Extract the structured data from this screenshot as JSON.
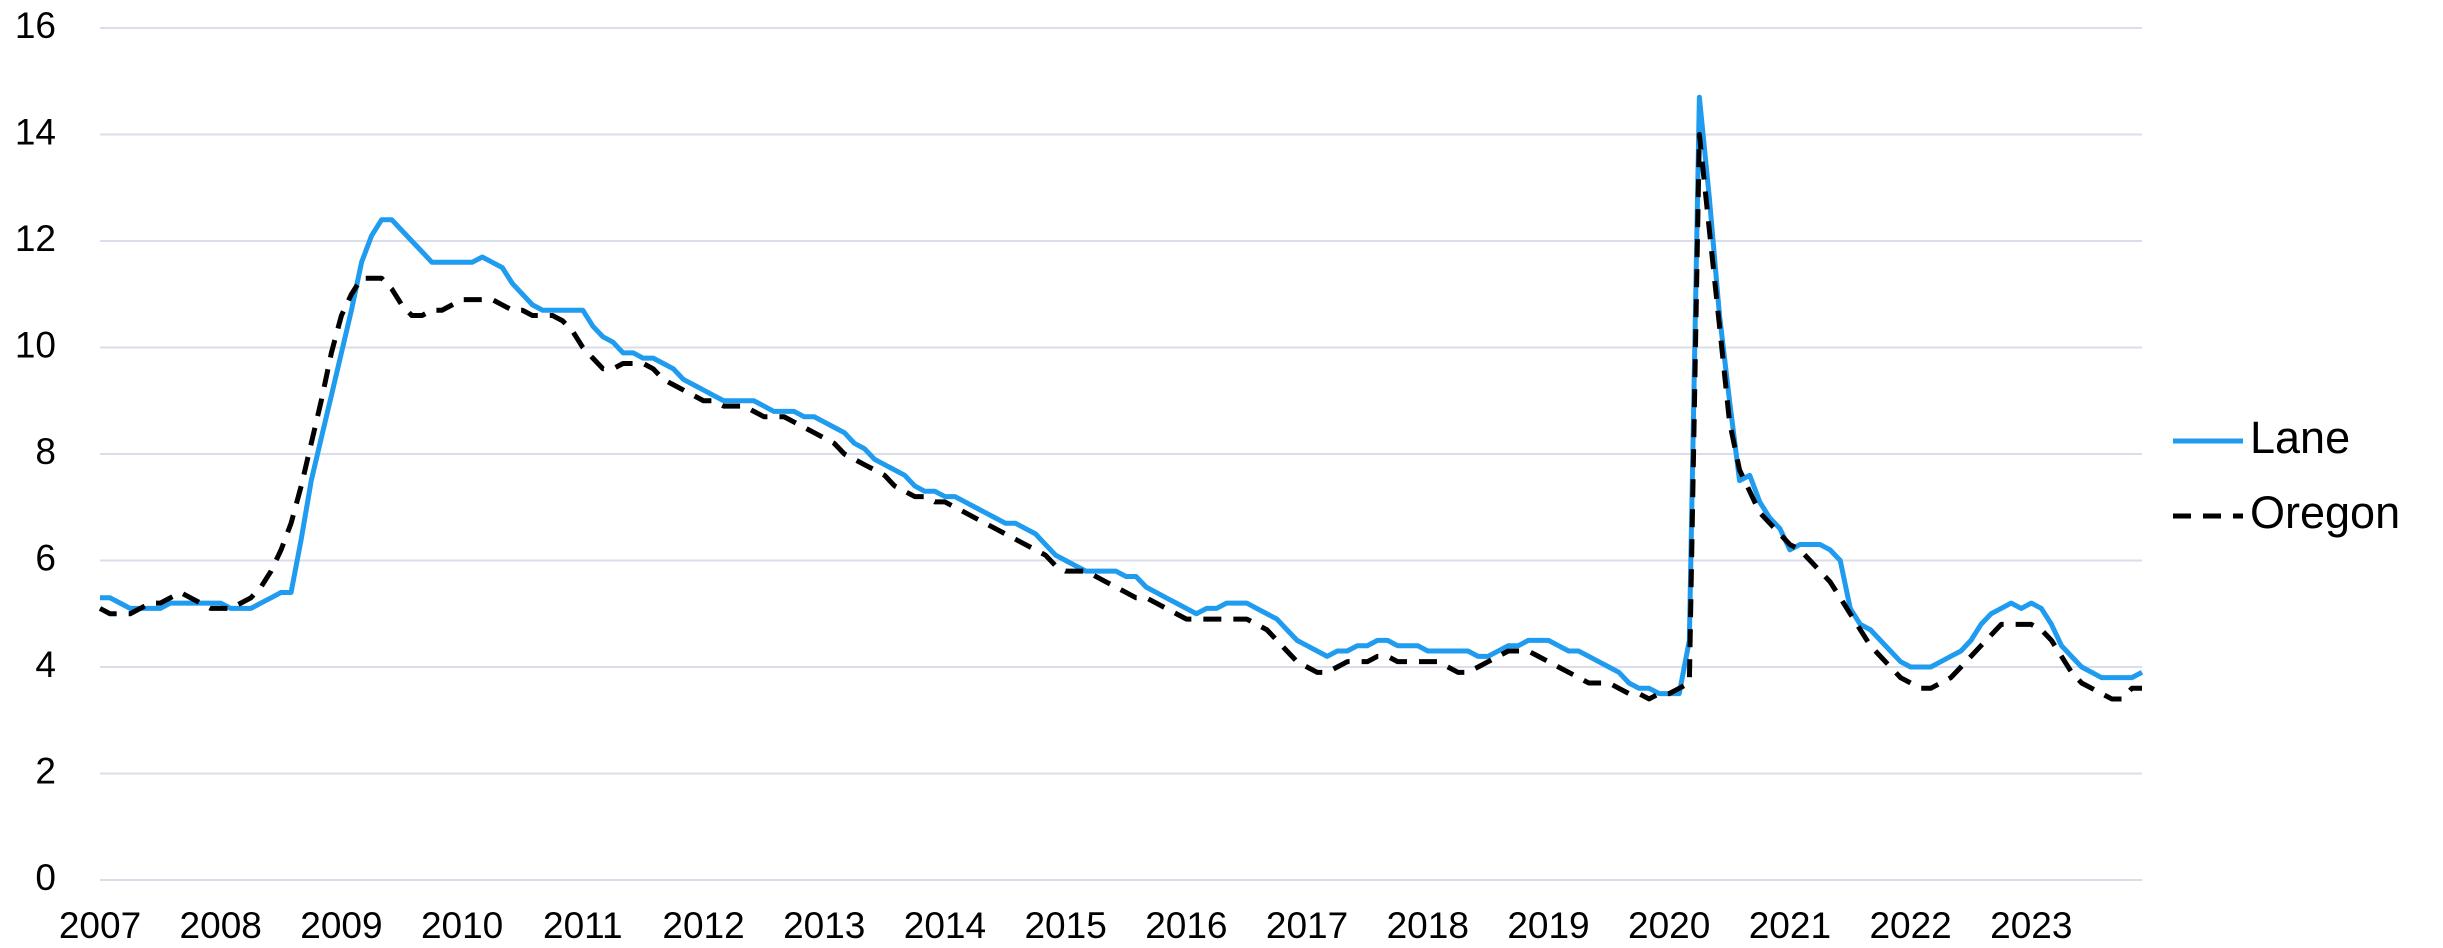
{
  "chart_data": {
    "type": "line",
    "x": [
      2007.0,
      2007.083,
      2007.167,
      2007.25,
      2007.333,
      2007.417,
      2007.5,
      2007.583,
      2007.667,
      2007.75,
      2007.833,
      2007.917,
      2008.0,
      2008.083,
      2008.167,
      2008.25,
      2008.333,
      2008.417,
      2008.5,
      2008.583,
      2008.667,
      2008.75,
      2008.833,
      2008.917,
      2009.0,
      2009.083,
      2009.167,
      2009.25,
      2009.333,
      2009.417,
      2009.5,
      2009.583,
      2009.667,
      2009.75,
      2009.833,
      2009.917,
      2010.0,
      2010.083,
      2010.167,
      2010.25,
      2010.333,
      2010.417,
      2010.5,
      2010.583,
      2010.667,
      2010.75,
      2010.833,
      2010.917,
      2011.0,
      2011.083,
      2011.167,
      2011.25,
      2011.333,
      2011.417,
      2011.5,
      2011.583,
      2011.667,
      2011.75,
      2011.833,
      2011.917,
      2012.0,
      2012.083,
      2012.167,
      2012.25,
      2012.333,
      2012.417,
      2012.5,
      2012.583,
      2012.667,
      2012.75,
      2012.833,
      2012.917,
      2013.0,
      2013.083,
      2013.167,
      2013.25,
      2013.333,
      2013.417,
      2013.5,
      2013.583,
      2013.667,
      2013.75,
      2013.833,
      2013.917,
      2014.0,
      2014.083,
      2014.167,
      2014.25,
      2014.333,
      2014.417,
      2014.5,
      2014.583,
      2014.667,
      2014.75,
      2014.833,
      2014.917,
      2015.0,
      2015.083,
      2015.167,
      2015.25,
      2015.333,
      2015.417,
      2015.5,
      2015.583,
      2015.667,
      2015.75,
      2015.833,
      2015.917,
      2016.0,
      2016.083,
      2016.167,
      2016.25,
      2016.333,
      2016.417,
      2016.5,
      2016.583,
      2016.667,
      2016.75,
      2016.833,
      2016.917,
      2017.0,
      2017.083,
      2017.167,
      2017.25,
      2017.333,
      2017.417,
      2017.5,
      2017.583,
      2017.667,
      2017.75,
      2017.833,
      2017.917,
      2018.0,
      2018.083,
      2018.167,
      2018.25,
      2018.333,
      2018.417,
      2018.5,
      2018.583,
      2018.667,
      2018.75,
      2018.833,
      2018.917,
      2019.0,
      2019.083,
      2019.167,
      2019.25,
      2019.333,
      2019.417,
      2019.5,
      2019.583,
      2019.667,
      2019.75,
      2019.833,
      2019.917,
      2020.0,
      2020.083,
      2020.167,
      2020.25,
      2020.333,
      2020.417,
      2020.5,
      2020.583,
      2020.667,
      2020.75,
      2020.833,
      2020.917,
      2021.0,
      2021.083,
      2021.167,
      2021.25,
      2021.333,
      2021.417,
      2021.5,
      2021.583,
      2021.667,
      2021.75,
      2021.833,
      2021.917,
      2022.0,
      2022.083,
      2022.167,
      2022.25,
      2022.333,
      2022.417,
      2022.5,
      2022.583,
      2022.667,
      2022.75,
      2022.833,
      2022.917,
      2023.0,
      2023.083,
      2023.167,
      2023.25,
      2023.333,
      2023.417,
      2023.5,
      2023.583,
      2023.667,
      2023.75,
      2023.833,
      2023.917
    ],
    "series": [
      {
        "name": "Lane",
        "color": "#1f9bef",
        "line_style": "solid",
        "values": [
          5.3,
          5.3,
          5.2,
          5.1,
          5.1,
          5.1,
          5.1,
          5.2,
          5.2,
          5.2,
          5.2,
          5.2,
          5.2,
          5.1,
          5.1,
          5.1,
          5.2,
          5.3,
          5.4,
          5.4,
          6.4,
          7.5,
          8.3,
          9.1,
          9.9,
          10.7,
          11.6,
          12.1,
          12.4,
          12.4,
          12.2,
          12.0,
          11.8,
          11.6,
          11.6,
          11.6,
          11.6,
          11.6,
          11.7,
          11.6,
          11.5,
          11.2,
          11.0,
          10.8,
          10.7,
          10.7,
          10.7,
          10.7,
          10.7,
          10.4,
          10.2,
          10.1,
          9.9,
          9.9,
          9.8,
          9.8,
          9.7,
          9.6,
          9.4,
          9.3,
          9.2,
          9.1,
          9.0,
          9.0,
          9.0,
          9.0,
          8.9,
          8.8,
          8.8,
          8.8,
          8.7,
          8.7,
          8.6,
          8.5,
          8.4,
          8.2,
          8.1,
          7.9,
          7.8,
          7.7,
          7.6,
          7.4,
          7.3,
          7.3,
          7.2,
          7.2,
          7.1,
          7.0,
          6.9,
          6.8,
          6.7,
          6.7,
          6.6,
          6.5,
          6.3,
          6.1,
          6.0,
          5.9,
          5.8,
          5.8,
          5.8,
          5.8,
          5.7,
          5.7,
          5.5,
          5.4,
          5.3,
          5.2,
          5.1,
          5.0,
          5.1,
          5.1,
          5.2,
          5.2,
          5.2,
          5.1,
          5.0,
          4.9,
          4.7,
          4.5,
          4.4,
          4.3,
          4.2,
          4.3,
          4.3,
          4.4,
          4.4,
          4.5,
          4.5,
          4.4,
          4.4,
          4.4,
          4.3,
          4.3,
          4.3,
          4.3,
          4.3,
          4.2,
          4.2,
          4.3,
          4.4,
          4.4,
          4.5,
          4.5,
          4.5,
          4.4,
          4.3,
          4.3,
          4.2,
          4.1,
          4.0,
          3.9,
          3.7,
          3.6,
          3.6,
          3.5,
          3.5,
          3.5,
          4.5,
          14.7,
          12.8,
          10.6,
          9.0,
          7.5,
          7.6,
          7.1,
          6.8,
          6.6,
          6.2,
          6.3,
          6.3,
          6.3,
          6.2,
          6.0,
          5.1,
          4.8,
          4.7,
          4.5,
          4.3,
          4.1,
          4.0,
          4.0,
          4.0,
          4.1,
          4.2,
          4.3,
          4.5,
          4.8,
          5.0,
          5.1,
          5.2,
          5.1,
          5.2,
          5.1,
          4.8,
          4.4,
          4.2,
          4.0,
          3.9,
          3.8,
          3.8,
          3.8,
          3.8,
          3.9
        ]
      },
      {
        "name": "Oregon",
        "color": "#000000",
        "line_style": "dashed",
        "values": [
          5.1,
          5.0,
          5.0,
          5.0,
          5.1,
          5.2,
          5.2,
          5.3,
          5.4,
          5.3,
          5.2,
          5.1,
          5.1,
          5.1,
          5.2,
          5.3,
          5.5,
          5.8,
          6.2,
          6.7,
          7.4,
          8.2,
          9.0,
          9.9,
          10.6,
          11.0,
          11.3,
          11.3,
          11.3,
          11.1,
          10.8,
          10.6,
          10.6,
          10.7,
          10.7,
          10.8,
          10.9,
          10.9,
          10.9,
          10.9,
          10.8,
          10.7,
          10.7,
          10.6,
          10.6,
          10.6,
          10.5,
          10.3,
          10.0,
          9.8,
          9.6,
          9.6,
          9.7,
          9.7,
          9.7,
          9.6,
          9.4,
          9.3,
          9.2,
          9.1,
          9.0,
          9.0,
          8.9,
          8.9,
          8.9,
          8.8,
          8.7,
          8.7,
          8.7,
          8.6,
          8.5,
          8.4,
          8.3,
          8.2,
          8.0,
          7.9,
          7.8,
          7.7,
          7.6,
          7.4,
          7.3,
          7.2,
          7.2,
          7.1,
          7.1,
          7.0,
          6.9,
          6.8,
          6.7,
          6.6,
          6.5,
          6.4,
          6.3,
          6.2,
          6.1,
          5.9,
          5.8,
          5.8,
          5.8,
          5.7,
          5.6,
          5.5,
          5.4,
          5.3,
          5.3,
          5.2,
          5.1,
          5.0,
          4.9,
          4.9,
          4.9,
          4.9,
          4.9,
          4.9,
          4.9,
          4.8,
          4.7,
          4.5,
          4.3,
          4.1,
          4.0,
          3.9,
          3.9,
          4.0,
          4.1,
          4.1,
          4.1,
          4.2,
          4.2,
          4.1,
          4.1,
          4.1,
          4.1,
          4.1,
          4.0,
          3.9,
          3.9,
          4.0,
          4.1,
          4.2,
          4.3,
          4.3,
          4.3,
          4.2,
          4.1,
          4.0,
          3.9,
          3.8,
          3.7,
          3.7,
          3.7,
          3.6,
          3.5,
          3.5,
          3.4,
          3.5,
          3.5,
          3.6,
          3.7,
          14.0,
          12.2,
          10.4,
          8.6,
          7.7,
          7.3,
          6.9,
          6.7,
          6.5,
          6.3,
          6.2,
          6.0,
          5.8,
          5.6,
          5.3,
          5.0,
          4.7,
          4.4,
          4.2,
          4.0,
          3.8,
          3.7,
          3.6,
          3.6,
          3.7,
          3.8,
          4.0,
          4.2,
          4.4,
          4.6,
          4.8,
          4.8,
          4.8,
          4.8,
          4.7,
          4.5,
          4.2,
          3.9,
          3.7,
          3.6,
          3.5,
          3.4,
          3.4,
          3.6,
          3.6
        ]
      }
    ],
    "xlim": [
      2007,
      2023.917
    ],
    "xticks": [
      2007,
      2008,
      2009,
      2010,
      2011,
      2012,
      2013,
      2014,
      2015,
      2016,
      2017,
      2018,
      2019,
      2020,
      2021,
      2022,
      2023
    ],
    "ylim": [
      0,
      16
    ],
    "yticks": [
      0,
      2,
      4,
      6,
      8,
      10,
      12,
      14,
      16
    ],
    "grid": true,
    "legend": "right"
  }
}
